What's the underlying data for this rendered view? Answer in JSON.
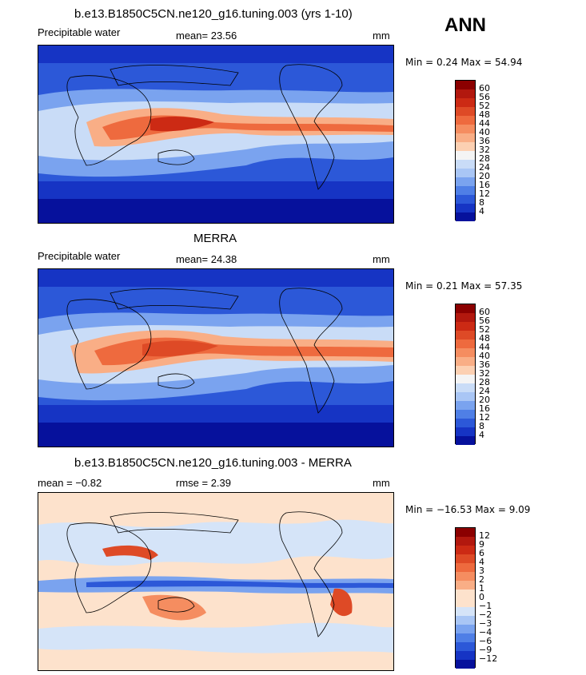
{
  "season": "ANN",
  "panels": [
    {
      "title": "b.e13.B1850C5CN.ne120_g16.tuning.003 (yrs 1-10)",
      "left_text": "Precipitable water",
      "center_text": "mean=  23.56",
      "units": "mm",
      "min_text": "Min =    0.24  Max =  54.94",
      "colorbar": {
        "labels": [
          "60",
          "56",
          "52",
          "48",
          "44",
          "40",
          "36",
          "32",
          "28",
          "24",
          "20",
          "16",
          "12",
          "8",
          "4"
        ],
        "colors": [
          "#8b0000",
          "#b2180e",
          "#cc2a14",
          "#de4a26",
          "#ee6a3e",
          "#f58d60",
          "#f9ae86",
          "#fcd0b2",
          "#f4f4f4",
          "#c9dcf7",
          "#a9c6f5",
          "#7aa3ef",
          "#4f7fe6",
          "#2c58d8",
          "#1634c4",
          "#06119c"
        ]
      }
    },
    {
      "title": "MERRA",
      "left_text": "Precipitable water",
      "center_text": "mean=  24.38",
      "units": "mm",
      "min_text": "Min =    0.21  Max =  57.35",
      "colorbar": {
        "labels": [
          "60",
          "56",
          "52",
          "48",
          "44",
          "40",
          "36",
          "32",
          "28",
          "24",
          "20",
          "16",
          "12",
          "8",
          "4"
        ],
        "colors": [
          "#8b0000",
          "#b2180e",
          "#cc2a14",
          "#de4a26",
          "#ee6a3e",
          "#f58d60",
          "#f9ae86",
          "#fcd0b2",
          "#f4f4f4",
          "#c9dcf7",
          "#a9c6f5",
          "#7aa3ef",
          "#4f7fe6",
          "#2c58d8",
          "#1634c4",
          "#06119c"
        ]
      }
    },
    {
      "title": "b.e13.B1850C5CN.ne120_g16.tuning.003 - MERRA",
      "left_text": "mean =   −0.82",
      "center_text": "rmse =    2.39",
      "units": "mm",
      "min_text": "Min = −16.53  Max =    9.09",
      "colorbar": {
        "labels": [
          "12",
          "9",
          "6",
          "4",
          "3",
          "2",
          "1",
          "0",
          "−1",
          "−2",
          "−3",
          "−4",
          "−6",
          "−9",
          "−12"
        ],
        "colors": [
          "#8b0000",
          "#b2180e",
          "#cc2a14",
          "#de4a26",
          "#ee6a3e",
          "#f58d60",
          "#f9ae86",
          "#fde2cc",
          "#fde2cc",
          "#d5e4f8",
          "#a9c6f5",
          "#7aa3ef",
          "#4f7fe6",
          "#2c58d8",
          "#1634c4",
          "#06119c"
        ]
      }
    }
  ]
}
